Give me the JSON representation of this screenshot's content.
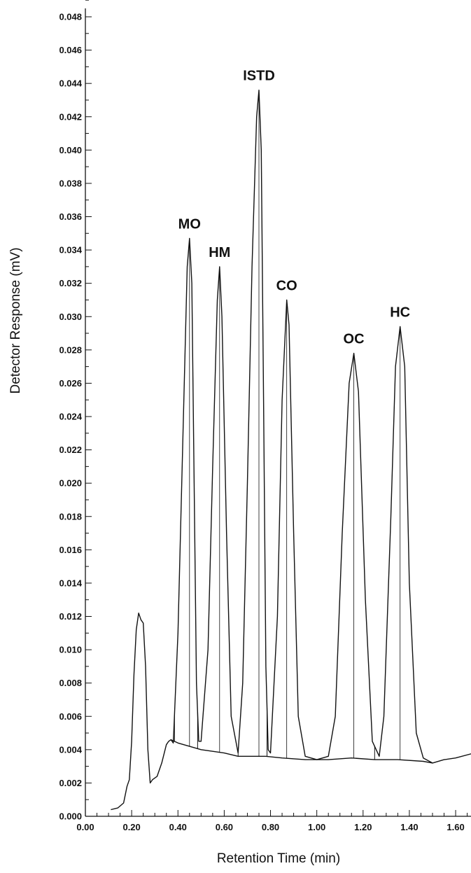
{
  "chart_data": {
    "type": "line",
    "title": "",
    "xlabel": "Retention Time (min)",
    "ylabel": "Detector Response (mV)",
    "xlim": [
      0.0,
      1.68
    ],
    "ylim": [
      0.0,
      0.049
    ],
    "x_ticks": [
      "0.00",
      "0.20",
      "0.40",
      "0.60",
      "0.80",
      "1.00",
      "1.20",
      "1.40",
      "1.60"
    ],
    "y_ticks": [
      "0.000",
      "0.002",
      "0.004",
      "0.006",
      "0.008",
      "0.010",
      "0.012",
      "0.014",
      "0.016",
      "0.018",
      "0.020",
      "0.022",
      "0.024",
      "0.026",
      "0.028",
      "0.030",
      "0.032",
      "0.034",
      "0.036",
      "0.038",
      "0.040",
      "0.042",
      "0.044",
      "0.046",
      "0.048"
    ],
    "grid": false,
    "peaks": [
      {
        "label": "MO",
        "x": 0.45,
        "y": 0.0347
      },
      {
        "label": "HM",
        "x": 0.58,
        "y": 0.033
      },
      {
        "label": "ISTD",
        "x": 0.75,
        "y": 0.0436
      },
      {
        "label": "CO",
        "x": 0.87,
        "y": 0.031
      },
      {
        "label": "OC",
        "x": 1.16,
        "y": 0.0278
      },
      {
        "label": "HC",
        "x": 1.36,
        "y": 0.0294
      }
    ],
    "series": [
      {
        "values": [
          [
            0.11,
            0.0004
          ],
          [
            0.14,
            0.0005
          ],
          [
            0.165,
            0.0008
          ],
          [
            0.18,
            0.0018
          ],
          [
            0.19,
            0.0022
          ],
          [
            0.2,
            0.0045
          ],
          [
            0.21,
            0.0085
          ],
          [
            0.22,
            0.0112
          ],
          [
            0.23,
            0.0122
          ],
          [
            0.24,
            0.0118
          ],
          [
            0.25,
            0.0116
          ],
          [
            0.26,
            0.009
          ],
          [
            0.27,
            0.004
          ],
          [
            0.28,
            0.002
          ],
          [
            0.29,
            0.0022
          ],
          [
            0.31,
            0.0024
          ],
          [
            0.33,
            0.0032
          ],
          [
            0.35,
            0.0043
          ],
          [
            0.36,
            0.0045
          ],
          [
            0.37,
            0.0046
          ],
          [
            0.38,
            0.0044
          ],
          [
            0.4,
            0.011
          ],
          [
            0.42,
            0.022
          ],
          [
            0.44,
            0.033
          ],
          [
            0.45,
            0.0347
          ],
          [
            0.46,
            0.032
          ],
          [
            0.47,
            0.02
          ],
          [
            0.48,
            0.008
          ],
          [
            0.49,
            0.0045
          ],
          [
            0.5,
            0.0045
          ],
          [
            0.53,
            0.01
          ],
          [
            0.55,
            0.021
          ],
          [
            0.57,
            0.031
          ],
          [
            0.58,
            0.033
          ],
          [
            0.59,
            0.03
          ],
          [
            0.61,
            0.017
          ],
          [
            0.63,
            0.006
          ],
          [
            0.66,
            0.0038
          ],
          [
            0.68,
            0.008
          ],
          [
            0.7,
            0.02
          ],
          [
            0.72,
            0.033
          ],
          [
            0.74,
            0.042
          ],
          [
            0.75,
            0.0436
          ],
          [
            0.76,
            0.04
          ],
          [
            0.77,
            0.025
          ],
          [
            0.78,
            0.009
          ],
          [
            0.79,
            0.004
          ],
          [
            0.8,
            0.0038
          ],
          [
            0.83,
            0.012
          ],
          [
            0.85,
            0.025
          ],
          [
            0.87,
            0.031
          ],
          [
            0.88,
            0.0295
          ],
          [
            0.9,
            0.017
          ],
          [
            0.92,
            0.006
          ],
          [
            0.95,
            0.0036
          ],
          [
            1.0,
            0.0034
          ],
          [
            1.05,
            0.0036
          ],
          [
            1.08,
            0.006
          ],
          [
            1.11,
            0.017
          ],
          [
            1.14,
            0.026
          ],
          [
            1.16,
            0.0278
          ],
          [
            1.18,
            0.0255
          ],
          [
            1.21,
            0.013
          ],
          [
            1.24,
            0.0045
          ],
          [
            1.27,
            0.0036
          ],
          [
            1.29,
            0.006
          ],
          [
            1.32,
            0.018
          ],
          [
            1.34,
            0.027
          ],
          [
            1.36,
            0.0294
          ],
          [
            1.38,
            0.027
          ],
          [
            1.4,
            0.014
          ],
          [
            1.43,
            0.005
          ],
          [
            1.46,
            0.0035
          ],
          [
            1.5,
            0.0032
          ],
          [
            1.55,
            0.0034
          ],
          [
            1.6,
            0.0035
          ],
          [
            1.68,
            0.0038
          ]
        ]
      },
      {
        "values": [
          [
            0.37,
            0.0046
          ],
          [
            0.4,
            0.0044
          ],
          [
            0.45,
            0.0042
          ],
          [
            0.5,
            0.004
          ],
          [
            0.55,
            0.0039
          ],
          [
            0.6,
            0.0038
          ],
          [
            0.66,
            0.0036
          ],
          [
            0.7,
            0.0036
          ],
          [
            0.78,
            0.0036
          ],
          [
            0.85,
            0.0035
          ],
          [
            0.95,
            0.0034
          ],
          [
            1.0,
            0.0034
          ],
          [
            1.05,
            0.0034
          ],
          [
            1.15,
            0.0035
          ],
          [
            1.25,
            0.0034
          ],
          [
            1.35,
            0.0034
          ],
          [
            1.46,
            0.0033
          ],
          [
            1.5,
            0.0032
          ]
        ]
      }
    ],
    "drop_lines": [
      0.385,
      0.485,
      0.66,
      0.785,
      1.25
    ]
  }
}
